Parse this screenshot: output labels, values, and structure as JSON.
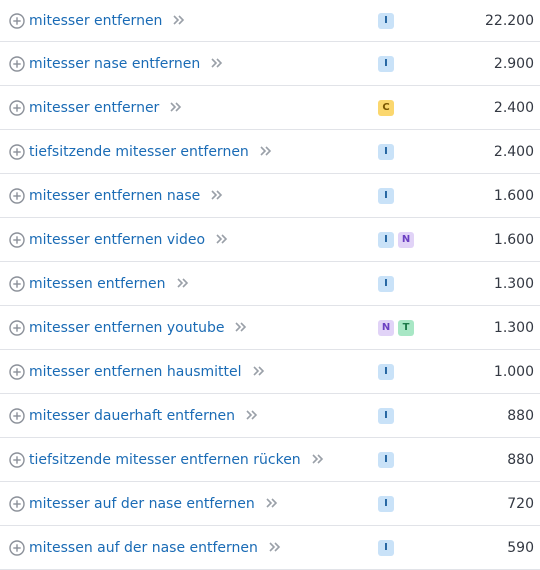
{
  "intent_colors": {
    "I": {
      "bg": "#c9e2f8",
      "fg": "#1d5f9e"
    },
    "C": {
      "bg": "#fbd76e",
      "fg": "#7a5600"
    },
    "N": {
      "bg": "#e1d3f7",
      "fg": "#6b3fc2"
    },
    "T": {
      "bg": "#a8e7c5",
      "fg": "#1d7a49"
    }
  },
  "icons": {
    "add": "plus-circle-icon",
    "navigate": "double-chevron-right-icon"
  },
  "rows": [
    {
      "keyword": "mitesser entfernen",
      "intents": [
        "I"
      ],
      "volume": "22.200"
    },
    {
      "keyword": "mitesser nase entfernen",
      "intents": [
        "I"
      ],
      "volume": "2.900"
    },
    {
      "keyword": "mitesser entferner",
      "intents": [
        "C"
      ],
      "volume": "2.400"
    },
    {
      "keyword": "tiefsitzende mitesser entfernen",
      "intents": [
        "I"
      ],
      "volume": "2.400"
    },
    {
      "keyword": "mitesser entfernen nase",
      "intents": [
        "I"
      ],
      "volume": "1.600"
    },
    {
      "keyword": "mitesser entfernen video",
      "intents": [
        "I",
        "N"
      ],
      "volume": "1.600"
    },
    {
      "keyword": "mitessen entfernen",
      "intents": [
        "I"
      ],
      "volume": "1.300"
    },
    {
      "keyword": "mitesser entfernen youtube",
      "intents": [
        "N",
        "T"
      ],
      "volume": "1.300"
    },
    {
      "keyword": "mitesser entfernen hausmittel",
      "intents": [
        "I"
      ],
      "volume": "1.000"
    },
    {
      "keyword": "mitesser dauerhaft entfernen",
      "intents": [
        "I"
      ],
      "volume": "880"
    },
    {
      "keyword": "tiefsitzende mitesser entfernen rücken",
      "intents": [
        "I"
      ],
      "volume": "880"
    },
    {
      "keyword": "mitesser auf der nase entfernen",
      "intents": [
        "I"
      ],
      "volume": "720"
    },
    {
      "keyword": "mitessen auf der nase entfernen",
      "intents": [
        "I"
      ],
      "volume": "590"
    }
  ]
}
